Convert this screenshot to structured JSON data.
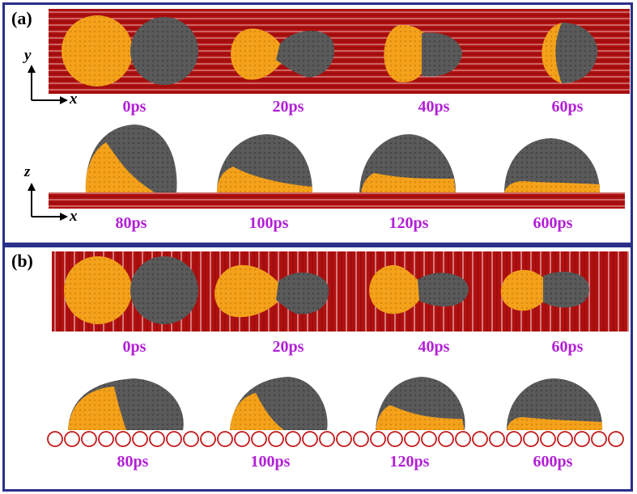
{
  "panels": [
    {
      "label": "(a)",
      "top_times": [
        "0ps",
        "20ps",
        "40ps",
        "60ps"
      ],
      "bottom_times": [
        "80ps",
        "100ps",
        "120ps",
        "600ps"
      ],
      "top_axes": {
        "vertical": "y",
        "horizontal": "x"
      },
      "bottom_axes": {
        "vertical": "z",
        "horizontal": "x"
      }
    },
    {
      "label": "(b)",
      "top_times": [
        "0ps",
        "20ps",
        "40ps",
        "60ps"
      ],
      "bottom_times": [
        "80ps",
        "100ps",
        "120ps",
        "600ps"
      ]
    }
  ],
  "colors": {
    "frame": "#2a2f8a",
    "substrate": "#b01010",
    "droplet_orange": "#f5a21b",
    "droplet_gray": "#5a5a5a",
    "time_label": "#b21fd6"
  }
}
